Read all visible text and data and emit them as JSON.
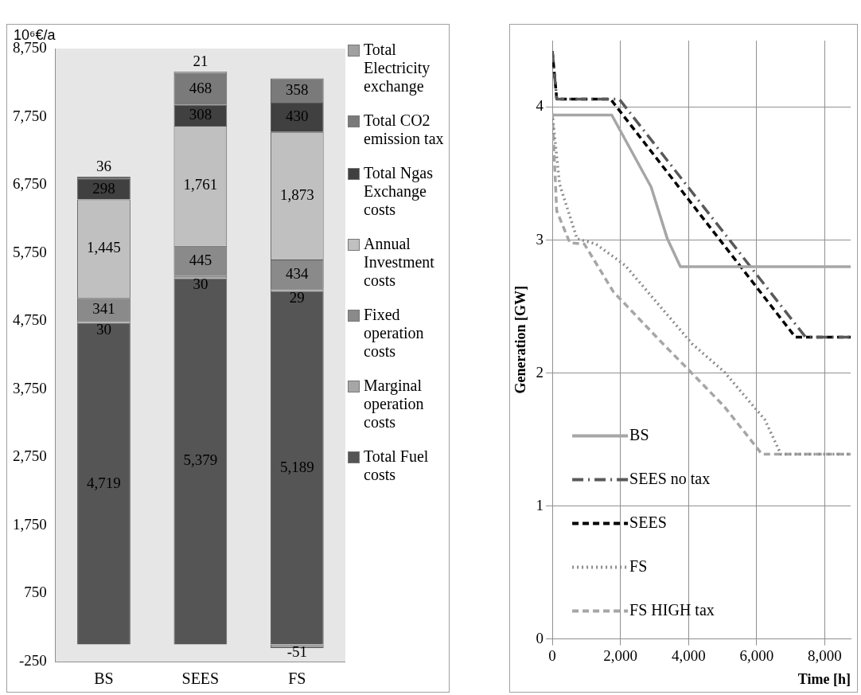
{
  "chart_data": [
    {
      "type": "bar",
      "stacked": true,
      "categories": [
        "BS",
        "SEES",
        "FS"
      ],
      "ylim": [
        -250,
        8750
      ],
      "yticks": [
        {
          "value": -250,
          "label": "-250"
        },
        {
          "value": 750,
          "label": "750"
        },
        {
          "value": 1750,
          "label": "1,750"
        },
        {
          "value": 2750,
          "label": "2,750"
        },
        {
          "value": 3750,
          "label": "3,750"
        },
        {
          "value": 4750,
          "label": "4,750"
        },
        {
          "value": 5750,
          "label": "5,750"
        },
        {
          "value": 6750,
          "label": "6,750"
        },
        {
          "value": 7750,
          "label": "7,750"
        },
        {
          "value": 8750,
          "label": "8,750"
        }
      ],
      "grid": false,
      "legend": "right",
      "data_labels": true,
      "ylabel": "10⁶€/a",
      "series": [
        {
          "name": "Total Fuel costs",
          "color": "#555555",
          "values": [
            4719,
            5379,
            5189
          ],
          "value_labels": [
            "4,719",
            "5,379",
            "5,189"
          ]
        },
        {
          "name": "Marginal operation costs",
          "color": "#a6a6a6",
          "values": [
            30,
            30,
            29
          ]
        },
        {
          "name": "Fixed operation costs",
          "color": "#8a8a8a",
          "values": [
            341,
            445,
            434
          ]
        },
        {
          "name": "Annual Investment costs",
          "color": "#c0c0c0",
          "values": [
            1445,
            1761,
            1873
          ],
          "value_labels": [
            "1,445",
            "1,761",
            "1,873"
          ]
        },
        {
          "name": "Total Ngas Exchange costs",
          "color": "#404040",
          "values": [
            298,
            308,
            430
          ]
        },
        {
          "name": "Total CO2 emission tax",
          "color": "#7a7a7a",
          "values": [
            36,
            468,
            358
          ]
        },
        {
          "name": "Total Electricity exchange",
          "color": "#a0a0a0",
          "values": [
            null,
            21,
            -51
          ]
        }
      ]
    },
    {
      "type": "line",
      "xlabel": "Time [h]",
      "ylabel": "Generation [GW]",
      "xlim": [
        0,
        8760
      ],
      "ylim": [
        0,
        4.5
      ],
      "xticks": [
        {
          "value": 0,
          "label": "0"
        },
        {
          "value": 2000,
          "label": "2,000"
        },
        {
          "value": 4000,
          "label": "4,000"
        },
        {
          "value": 6000,
          "label": "6,000"
        },
        {
          "value": 8000,
          "label": "8,000"
        }
      ],
      "yticks": [
        0,
        1,
        2,
        3,
        4
      ],
      "grid": true,
      "legend": "bottom left",
      "marker": "none",
      "series": [
        {
          "name": "BS",
          "color": "#a6a6a6",
          "line_style": "solid",
          "x": [
            0,
            1745,
            2900,
            3376,
            3761,
            8760
          ],
          "values": [
            3.94,
            3.94,
            3.4,
            3.01,
            2.8,
            2.8
          ]
        },
        {
          "name": "SEES no tax",
          "color": "#595959",
          "line_style": "dashdot",
          "x": [
            0,
            130,
            1966,
            7436,
            8760
          ],
          "values": [
            4.42,
            4.06,
            4.06,
            2.27,
            2.27
          ]
        },
        {
          "name": "SEES",
          "color": "#000000",
          "line_style": "dashed",
          "x": [
            0,
            130,
            1710,
            7136,
            8760
          ],
          "values": [
            4.42,
            4.06,
            4.06,
            2.27,
            2.27
          ]
        },
        {
          "name": "FS",
          "color": "#8c8c8c",
          "line_style": "dotted",
          "x": [
            0,
            213,
            726,
            1282,
            2137,
            4103,
            5043,
            6239,
            6709,
            8760
          ],
          "values": [
            3.95,
            3.42,
            3.01,
            2.97,
            2.81,
            2.22,
            2.01,
            1.65,
            1.39,
            1.39
          ]
        },
        {
          "name": "FS HIGH tax",
          "color": "#a6a6a6",
          "line_style": "dashed",
          "x": [
            0,
            128,
            513,
            940,
            1795,
            3248,
            4017,
            5043,
            6154,
            8760
          ],
          "values": [
            3.95,
            3.22,
            2.98,
            2.97,
            2.61,
            2.22,
            2.02,
            1.75,
            1.39,
            1.39
          ]
        }
      ]
    }
  ]
}
